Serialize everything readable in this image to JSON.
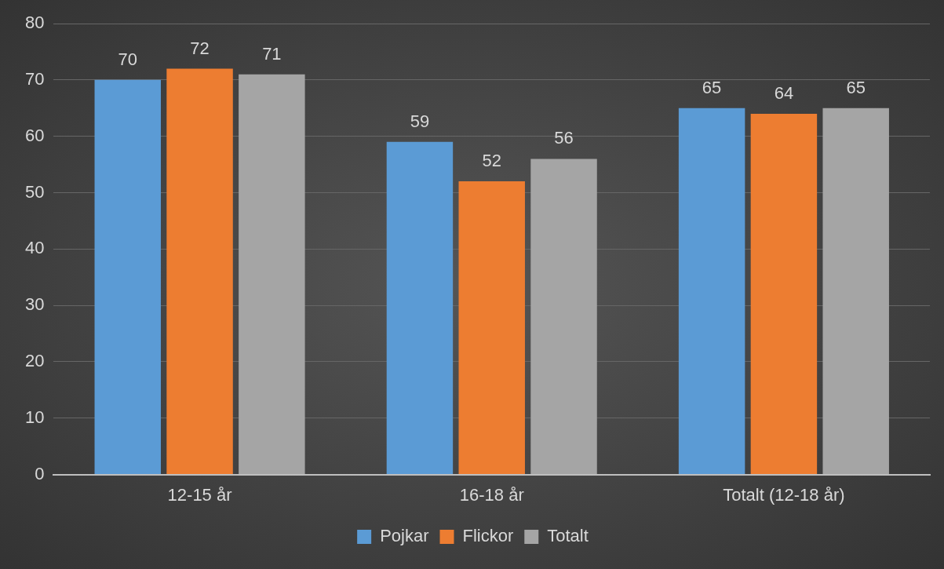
{
  "chart_data": {
    "type": "bar",
    "categories": [
      "12-15 år",
      "16-18 år",
      "Totalt (12-18 år)"
    ],
    "series": [
      {
        "name": "Pojkar",
        "color": "#5b9bd5",
        "values": [
          70,
          59,
          65
        ]
      },
      {
        "name": "Flickor",
        "color": "#ed7d31",
        "values": [
          72,
          52,
          64
        ]
      },
      {
        "name": "Totalt",
        "color": "#a5a5a5",
        "values": [
          71,
          56,
          65
        ]
      }
    ],
    "ylim": [
      0,
      80
    ],
    "yticks": [
      0,
      10,
      20,
      30,
      40,
      50,
      60,
      70,
      80
    ],
    "grid": "y",
    "legend": "bottom",
    "data_labels": true
  }
}
